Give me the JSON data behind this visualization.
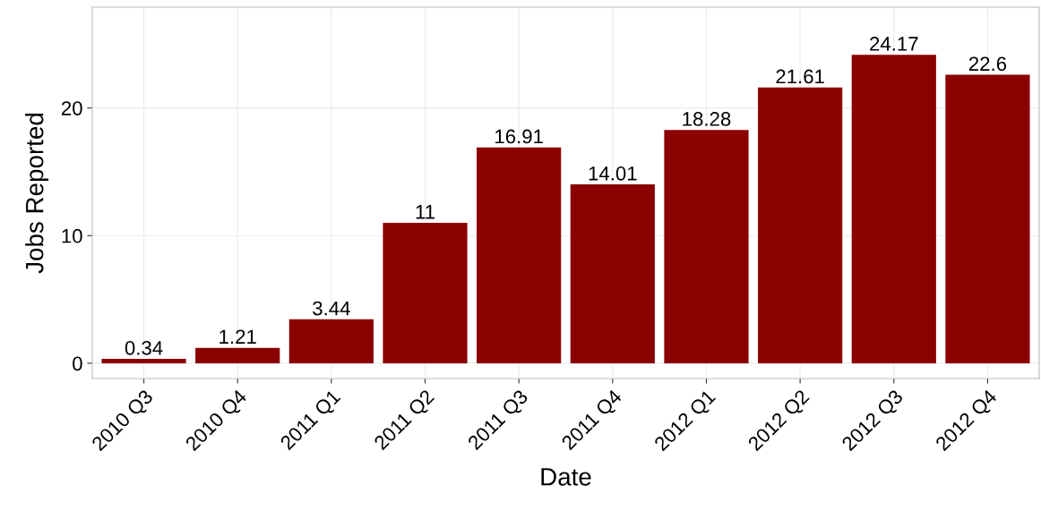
{
  "chart_data": {
    "type": "bar",
    "xlabel": "Date",
    "ylabel": "Jobs Reported",
    "categories": [
      "2010 Q3",
      "2010 Q4",
      "2011 Q1",
      "2011 Q2",
      "2011 Q3",
      "2011 Q4",
      "2012 Q1",
      "2012 Q2",
      "2012 Q3",
      "2012 Q4"
    ],
    "values": [
      0.34,
      1.21,
      3.44,
      11,
      16.91,
      14.01,
      18.28,
      21.61,
      24.17,
      22.6
    ],
    "color": "#8b0000",
    "data_labels": true,
    "ylim": [
      -1.2,
      27.9
    ],
    "yticks": [
      0,
      10,
      20
    ],
    "grid": true
  }
}
